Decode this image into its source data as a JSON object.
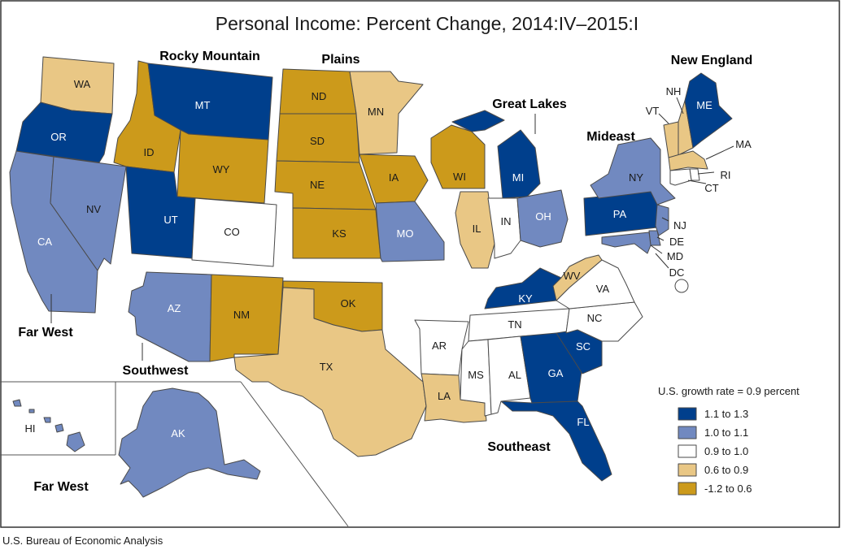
{
  "title": "Personal Income: Percent Change, 2014:IV–2015:I",
  "source": "U.S. Bureau of Economic Analysis",
  "colors": {
    "c1": "#003f8c",
    "c2": "#7189c0",
    "c3": "#ffffff",
    "c4": "#e9c785",
    "c5": "#cc9a1b"
  },
  "legend": {
    "heading": "U.S. growth rate = 0.9 percent",
    "items": [
      {
        "label": "1.1 to 1.3",
        "class": "c1"
      },
      {
        "label": "1.0 to 1.1",
        "class": "c2"
      },
      {
        "label": "0.9 to 1.0",
        "class": "c3"
      },
      {
        "label": "0.6 to 0.9",
        "class": "c4"
      },
      {
        "label": "-1.2 to 0.6",
        "class": "c5"
      }
    ]
  },
  "regions": {
    "far_west_1": "Far West",
    "far_west_2": "Far West",
    "rocky_mountain": "Rocky Mountain",
    "plains": "Plains",
    "great_lakes": "Great Lakes",
    "new_england": "New England",
    "mideast": "Mideast",
    "southwest": "Southwest",
    "southeast": "Southeast"
  },
  "states": {
    "WA": {
      "label": "WA",
      "class": "c4"
    },
    "OR": {
      "label": "OR",
      "class": "c1"
    },
    "CA": {
      "label": "CA",
      "class": "c2"
    },
    "NV": {
      "label": "NV",
      "class": "c2"
    },
    "ID": {
      "label": "ID",
      "class": "c5"
    },
    "MT": {
      "label": "MT",
      "class": "c1"
    },
    "WY": {
      "label": "WY",
      "class": "c5"
    },
    "UT": {
      "label": "UT",
      "class": "c1"
    },
    "CO": {
      "label": "CO",
      "class": "c3"
    },
    "AZ": {
      "label": "AZ",
      "class": "c2"
    },
    "NM": {
      "label": "NM",
      "class": "c5"
    },
    "ND": {
      "label": "ND",
      "class": "c5"
    },
    "SD": {
      "label": "SD",
      "class": "c5"
    },
    "NE": {
      "label": "NE",
      "class": "c5"
    },
    "KS": {
      "label": "KS",
      "class": "c5"
    },
    "OK": {
      "label": "OK",
      "class": "c5"
    },
    "TX": {
      "label": "TX",
      "class": "c4"
    },
    "MN": {
      "label": "MN",
      "class": "c4"
    },
    "IA": {
      "label": "IA",
      "class": "c5"
    },
    "MO": {
      "label": "MO",
      "class": "c2"
    },
    "AR": {
      "label": "AR",
      "class": "c3"
    },
    "LA": {
      "label": "LA",
      "class": "c4"
    },
    "WI": {
      "label": "WI",
      "class": "c5"
    },
    "IL": {
      "label": "IL",
      "class": "c4"
    },
    "MI": {
      "label": "MI",
      "class": "c1"
    },
    "IN": {
      "label": "IN",
      "class": "c3"
    },
    "OH": {
      "label": "OH",
      "class": "c2"
    },
    "KY": {
      "label": "KY",
      "class": "c1"
    },
    "TN": {
      "label": "TN",
      "class": "c3"
    },
    "MS": {
      "label": "MS",
      "class": "c3"
    },
    "AL": {
      "label": "AL",
      "class": "c3"
    },
    "GA": {
      "label": "GA",
      "class": "c1"
    },
    "FL": {
      "label": "FL",
      "class": "c1"
    },
    "SC": {
      "label": "SC",
      "class": "c1"
    },
    "NC": {
      "label": "NC",
      "class": "c3"
    },
    "VA": {
      "label": "VA",
      "class": "c3"
    },
    "WV": {
      "label": "WV",
      "class": "c4"
    },
    "PA": {
      "label": "PA",
      "class": "c1"
    },
    "NY": {
      "label": "NY",
      "class": "c2"
    },
    "NJ": {
      "label": "NJ",
      "class": "c2"
    },
    "DE": {
      "label": "DE",
      "class": "c2"
    },
    "MD": {
      "label": "MD",
      "class": "c2"
    },
    "DC": {
      "label": "DC",
      "class": "c3"
    },
    "VT": {
      "label": "VT",
      "class": "c4"
    },
    "NH": {
      "label": "NH",
      "class": "c4"
    },
    "ME": {
      "label": "ME",
      "class": "c1"
    },
    "MA": {
      "label": "MA",
      "class": "c4"
    },
    "RI": {
      "label": "RI",
      "class": "c3"
    },
    "CT": {
      "label": "CT",
      "class": "c3"
    },
    "AK": {
      "label": "AK",
      "class": "c2"
    },
    "HI": {
      "label": "HI",
      "class": "c2"
    }
  }
}
